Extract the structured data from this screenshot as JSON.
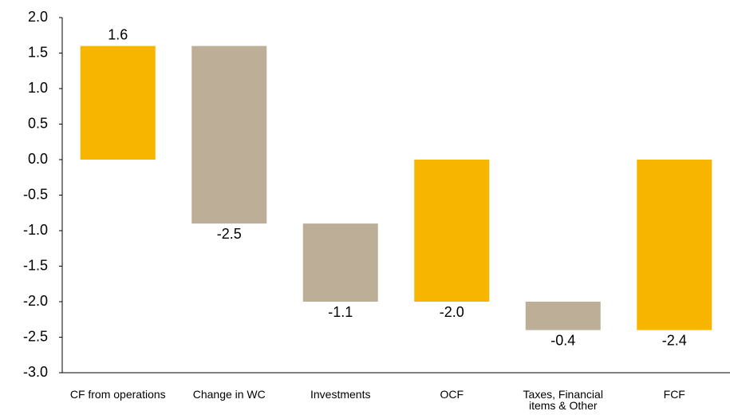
{
  "chart_data": {
    "type": "waterfall",
    "categories": [
      "CF from operations",
      "Change in WC",
      "Investments",
      "OCF",
      "Taxes, Financial items & Other",
      "FCF"
    ],
    "values": [
      1.6,
      -2.5,
      -1.1,
      -2.0,
      -0.4,
      -2.4
    ],
    "value_labels": [
      "1.6",
      "-2.5",
      "-1.1",
      "-2.0",
      "-0.4",
      "-2.4"
    ],
    "is_total": [
      true,
      false,
      false,
      true,
      false,
      true
    ],
    "total_color": "#F7B500",
    "change_color": "#BCAE97",
    "ylim": [
      -3.0,
      2.0
    ],
    "yticks": [
      {
        "value": 2.0,
        "label": "2.0"
      },
      {
        "value": 1.5,
        "label": "1.5"
      },
      {
        "value": 1.0,
        "label": "1.0"
      },
      {
        "value": 0.5,
        "label": "0.5"
      },
      {
        "value": 0.0,
        "label": "0.0"
      },
      {
        "value": -0.5,
        "label": "-0.5"
      },
      {
        "value": -1.0,
        "label": "-1.0"
      },
      {
        "value": -1.5,
        "label": "-1.5"
      },
      {
        "value": -2.0,
        "label": "-2.0"
      },
      {
        "value": -2.5,
        "label": "-2.5"
      },
      {
        "value": -3.0,
        "label": "-3.0"
      }
    ],
    "grid": false
  }
}
